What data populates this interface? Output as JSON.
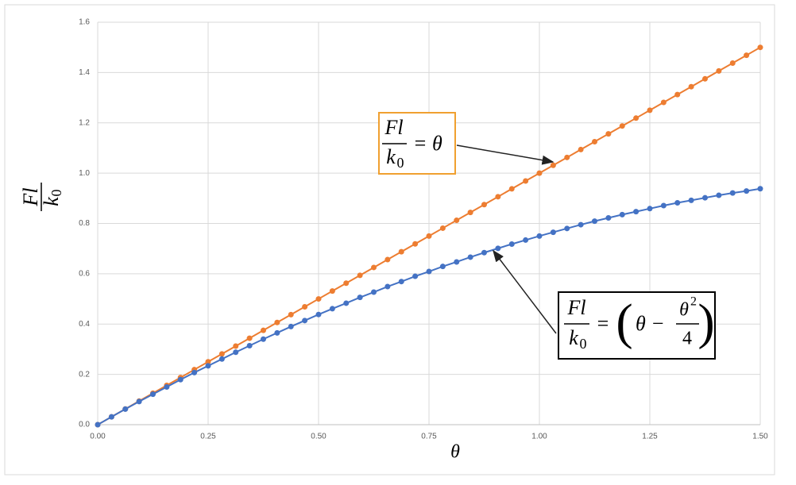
{
  "chart_data": {
    "type": "line",
    "x_label": "θ",
    "y_label": {
      "numerator": "Fl",
      "denominator": "k",
      "subscript": "0"
    },
    "x": [
      0,
      0.03125,
      0.0625,
      0.09375,
      0.125,
      0.15625,
      0.1875,
      0.21875,
      0.25,
      0.28125,
      0.3125,
      0.34375,
      0.375,
      0.40625,
      0.4375,
      0.46875,
      0.5,
      0.53125,
      0.5625,
      0.59375,
      0.625,
      0.65625,
      0.6875,
      0.71875,
      0.75,
      0.78125,
      0.8125,
      0.84375,
      0.875,
      0.90625,
      0.9375,
      0.96875,
      1,
      1.03125,
      1.0625,
      1.09375,
      1.125,
      1.15625,
      1.1875,
      1.21875,
      1.25,
      1.28125,
      1.3125,
      1.34375,
      1.375,
      1.40625,
      1.4375,
      1.46875,
      1.5
    ],
    "series": [
      {
        "color": "#ed7d31",
        "values": [
          0,
          0.03125,
          0.0625,
          0.09375,
          0.125,
          0.15625,
          0.1875,
          0.21875,
          0.25,
          0.28125,
          0.3125,
          0.34375,
          0.375,
          0.40625,
          0.4375,
          0.46875,
          0.5,
          0.53125,
          0.5625,
          0.59375,
          0.625,
          0.65625,
          0.6875,
          0.71875,
          0.75,
          0.78125,
          0.8125,
          0.84375,
          0.875,
          0.90625,
          0.9375,
          0.96875,
          1,
          1.03125,
          1.0625,
          1.09375,
          1.125,
          1.15625,
          1.1875,
          1.21875,
          1.25,
          1.28125,
          1.3125,
          1.34375,
          1.375,
          1.40625,
          1.4375,
          1.46875,
          1.5
        ]
      },
      {
        "color": "#4472c4",
        "values": [
          0,
          0.031,
          0.062,
          0.092,
          0.121,
          0.15,
          0.179,
          0.207,
          0.234,
          0.261,
          0.288,
          0.314,
          0.34,
          0.365,
          0.39,
          0.414,
          0.438,
          0.461,
          0.483,
          0.506,
          0.527,
          0.549,
          0.569,
          0.59,
          0.609,
          0.629,
          0.647,
          0.666,
          0.684,
          0.701,
          0.718,
          0.734,
          0.75,
          0.765,
          0.78,
          0.795,
          0.809,
          0.822,
          0.835,
          0.847,
          0.859,
          0.871,
          0.882,
          0.892,
          0.902,
          0.912,
          0.921,
          0.929,
          0.938
        ]
      }
    ],
    "xlim": [
      0,
      1.5
    ],
    "xticks": [
      {
        "value": 0,
        "label": "0.00"
      },
      {
        "value": 0.25,
        "label": "0.25"
      },
      {
        "value": 0.5,
        "label": "0.50"
      },
      {
        "value": 0.75,
        "label": "0.75"
      },
      {
        "value": 1,
        "label": "1.00"
      },
      {
        "value": 1.25,
        "label": "1.25"
      },
      {
        "value": 1.5,
        "label": "1.50"
      }
    ],
    "ylim": [
      0,
      1.6
    ],
    "yticks": [
      {
        "value": 0,
        "label": "0.0"
      },
      {
        "value": 0.2,
        "label": "0.2"
      },
      {
        "value": 0.4,
        "label": "0.4"
      },
      {
        "value": 0.6,
        "label": "0.6"
      },
      {
        "value": 0.8,
        "label": "0.8"
      },
      {
        "value": 1,
        "label": "1.0"
      },
      {
        "value": 1.2,
        "label": "1.2"
      },
      {
        "value": 1.4,
        "label": "1.4"
      },
      {
        "value": 1.6,
        "label": "1.6"
      }
    ],
    "grid": true,
    "annotations": [
      {
        "numerator": "Fl",
        "denominator": "k",
        "subscript": "0",
        "rhs": "= θ",
        "color": "#f0a030"
      },
      {
        "numerator": "Fl",
        "denominator": "k",
        "subscript": "0",
        "equals": "=",
        "open": "(",
        "term": "θ −",
        "frac_numerator": "θ",
        "frac_power": "2",
        "frac_denominator": "4",
        "close": ")",
        "color": "#000000"
      }
    ]
  }
}
